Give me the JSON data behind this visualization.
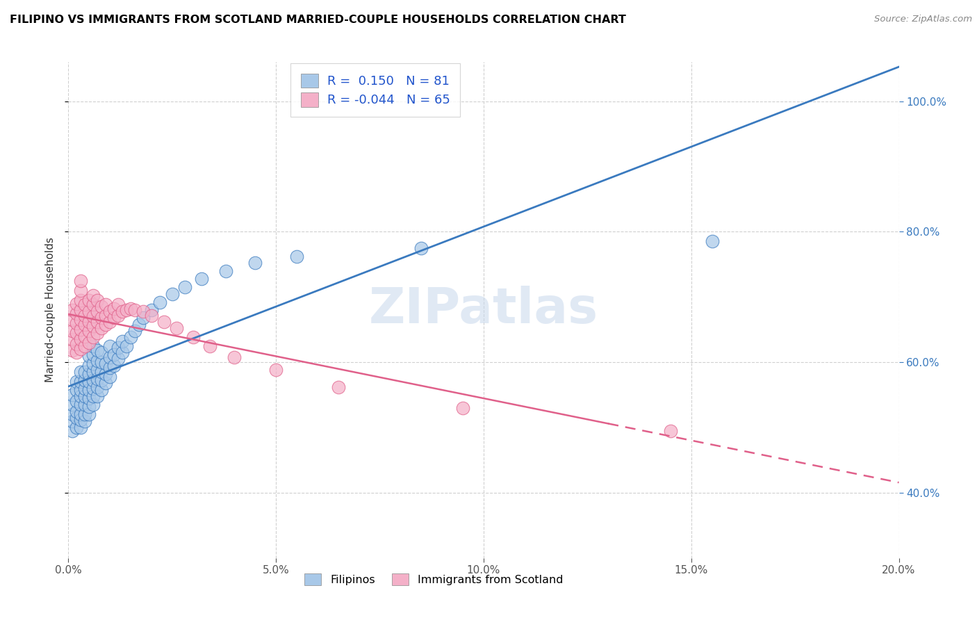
{
  "title": "FILIPINO VS IMMIGRANTS FROM SCOTLAND MARRIED-COUPLE HOUSEHOLDS CORRELATION CHART",
  "source": "Source: ZipAtlas.com",
  "ylabel_label": "Married-couple Households",
  "legend_labels": [
    "Filipinos",
    "Immigrants from Scotland"
  ],
  "R_filipino": 0.15,
  "N_filipino": 81,
  "R_scotland": -0.044,
  "N_scotland": 65,
  "color_filipino": "#a8c8e8",
  "color_scotland": "#f4b0c8",
  "line_color_filipino": "#3a7abf",
  "line_color_scotland": "#e0608a",
  "text_color_legend": "#2255cc",
  "watermark": "ZIPatlas",
  "xlim": [
    0.0,
    0.2
  ],
  "ylim": [
    0.3,
    1.06
  ],
  "xticks": [
    0.0,
    0.05,
    0.1,
    0.15,
    0.2
  ],
  "yticks": [
    0.4,
    0.6,
    0.8,
    1.0
  ],
  "filipino_x": [
    0.001,
    0.001,
    0.001,
    0.001,
    0.001,
    0.002,
    0.002,
    0.002,
    0.002,
    0.002,
    0.002,
    0.003,
    0.003,
    0.003,
    0.003,
    0.003,
    0.003,
    0.003,
    0.003,
    0.004,
    0.004,
    0.004,
    0.004,
    0.004,
    0.004,
    0.004,
    0.005,
    0.005,
    0.005,
    0.005,
    0.005,
    0.005,
    0.005,
    0.005,
    0.006,
    0.006,
    0.006,
    0.006,
    0.006,
    0.006,
    0.006,
    0.006,
    0.007,
    0.007,
    0.007,
    0.007,
    0.007,
    0.007,
    0.008,
    0.008,
    0.008,
    0.008,
    0.008,
    0.009,
    0.009,
    0.009,
    0.01,
    0.01,
    0.01,
    0.01,
    0.011,
    0.011,
    0.012,
    0.012,
    0.013,
    0.013,
    0.014,
    0.015,
    0.016,
    0.017,
    0.018,
    0.02,
    0.022,
    0.025,
    0.028,
    0.032,
    0.038,
    0.045,
    0.055,
    0.085,
    0.155
  ],
  "filipino_y": [
    0.495,
    0.51,
    0.52,
    0.535,
    0.55,
    0.5,
    0.515,
    0.525,
    0.54,
    0.558,
    0.57,
    0.5,
    0.512,
    0.52,
    0.535,
    0.548,
    0.558,
    0.57,
    0.585,
    0.51,
    0.52,
    0.535,
    0.548,
    0.56,
    0.572,
    0.585,
    0.52,
    0.532,
    0.545,
    0.558,
    0.57,
    0.582,
    0.595,
    0.61,
    0.535,
    0.548,
    0.56,
    0.572,
    0.585,
    0.598,
    0.612,
    0.625,
    0.548,
    0.562,
    0.575,
    0.588,
    0.602,
    0.618,
    0.558,
    0.572,
    0.585,
    0.6,
    0.615,
    0.568,
    0.582,
    0.598,
    0.578,
    0.592,
    0.608,
    0.625,
    0.595,
    0.612,
    0.605,
    0.622,
    0.615,
    0.632,
    0.625,
    0.638,
    0.648,
    0.658,
    0.668,
    0.68,
    0.692,
    0.705,
    0.715,
    0.728,
    0.74,
    0.752,
    0.762,
    0.775,
    0.785
  ],
  "scotland_x": [
    0.001,
    0.001,
    0.001,
    0.001,
    0.001,
    0.002,
    0.002,
    0.002,
    0.002,
    0.002,
    0.002,
    0.003,
    0.003,
    0.003,
    0.003,
    0.003,
    0.003,
    0.003,
    0.003,
    0.004,
    0.004,
    0.004,
    0.004,
    0.004,
    0.005,
    0.005,
    0.005,
    0.005,
    0.005,
    0.006,
    0.006,
    0.006,
    0.006,
    0.006,
    0.007,
    0.007,
    0.007,
    0.007,
    0.008,
    0.008,
    0.008,
    0.009,
    0.009,
    0.009,
    0.01,
    0.01,
    0.011,
    0.011,
    0.012,
    0.012,
    0.013,
    0.014,
    0.015,
    0.016,
    0.018,
    0.02,
    0.023,
    0.026,
    0.03,
    0.034,
    0.04,
    0.05,
    0.065,
    0.095,
    0.145
  ],
  "scotland_y": [
    0.618,
    0.635,
    0.648,
    0.665,
    0.68,
    0.615,
    0.628,
    0.645,
    0.66,
    0.675,
    0.69,
    0.62,
    0.635,
    0.65,
    0.665,
    0.68,
    0.695,
    0.71,
    0.725,
    0.625,
    0.64,
    0.658,
    0.672,
    0.688,
    0.63,
    0.648,
    0.662,
    0.678,
    0.695,
    0.638,
    0.655,
    0.67,
    0.688,
    0.702,
    0.645,
    0.662,
    0.678,
    0.695,
    0.652,
    0.668,
    0.685,
    0.658,
    0.672,
    0.688,
    0.662,
    0.678,
    0.668,
    0.682,
    0.672,
    0.688,
    0.678,
    0.68,
    0.682,
    0.68,
    0.678,
    0.672,
    0.662,
    0.652,
    0.638,
    0.625,
    0.608,
    0.588,
    0.562,
    0.53,
    0.495
  ],
  "scatter_size": 180,
  "scatter_alpha": 0.72,
  "scatter_lw": 0.8,
  "solid_line_end": 0.13,
  "figure_bg": "#ffffff",
  "grid_color": "#d0d0d0",
  "grid_style": "--",
  "grid_lw": 0.8
}
